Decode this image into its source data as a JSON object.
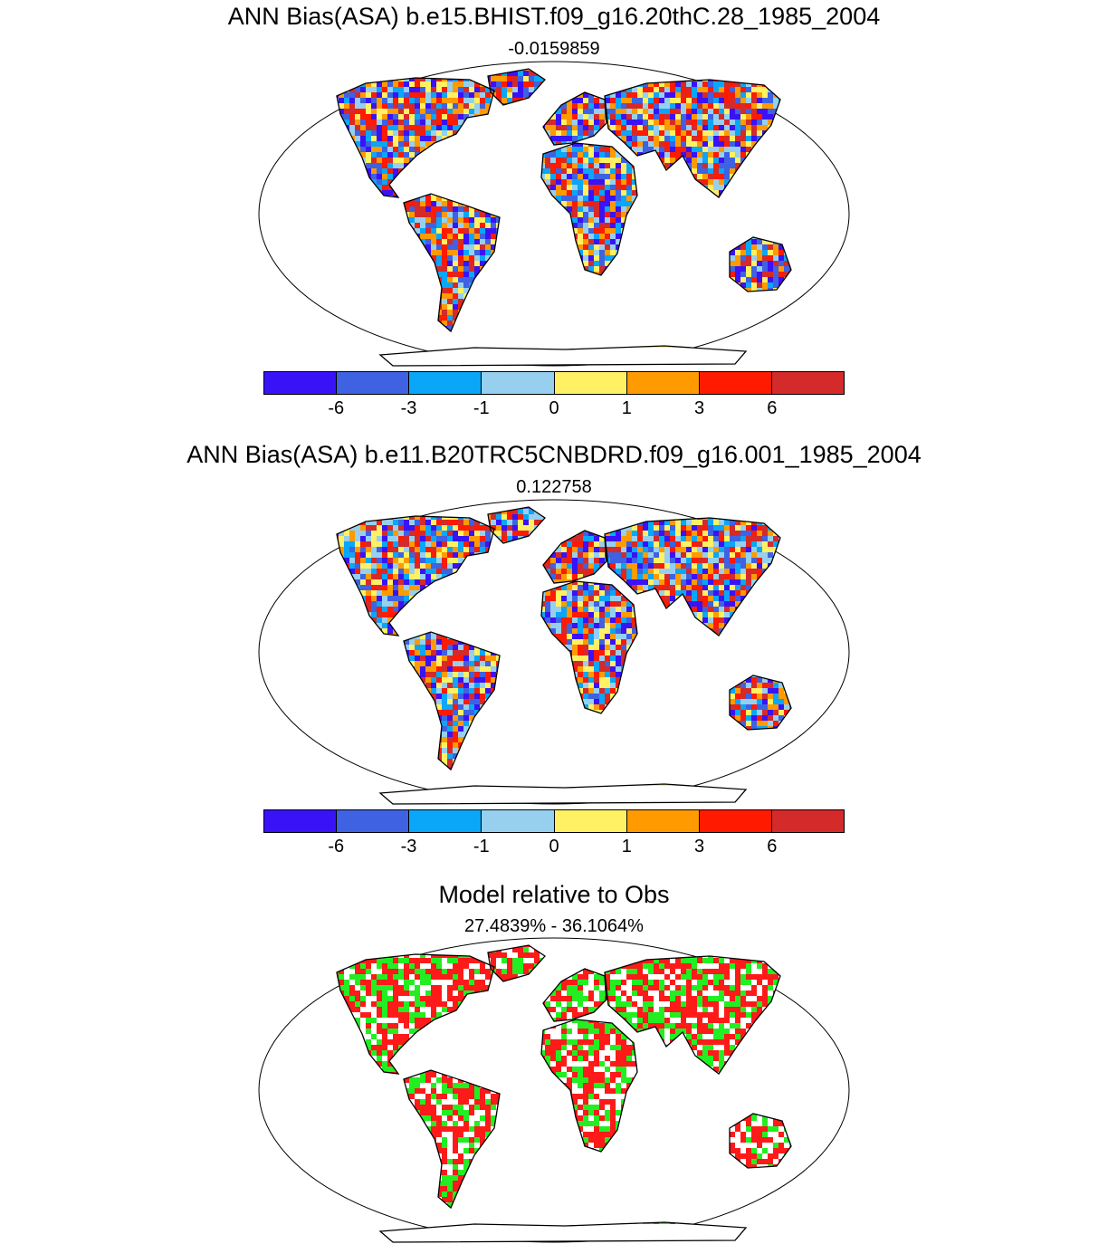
{
  "panels": [
    {
      "title": "ANN Bias(ASA) b.e15.BHIST.f09_g16.20thC.28_1985_2004",
      "value": "-0.0159859",
      "seed": 11
    },
    {
      "title": "ANN Bias(ASA) b.e11.B20TRC5CNBDRD.f09_g16.001_1985_2004",
      "value": "0.122758",
      "seed": 29
    },
    {
      "title": "Model relative to Obs",
      "value": "27.4839% - 36.1064%",
      "seed": 53
    }
  ],
  "colorbar": {
    "colors": [
      "#3a12f7",
      "#3e62e2",
      "#0aa6f7",
      "#96d0ee",
      "#fff064",
      "#ff9a00",
      "#ff1a00",
      "#d42a2a"
    ],
    "labels": [
      "-6",
      "-3",
      "-1",
      "0",
      "1",
      "3",
      "6"
    ]
  },
  "relative_colors": [
    "#ff1a1a",
    "#22ee22",
    "#ffffff"
  ]
}
